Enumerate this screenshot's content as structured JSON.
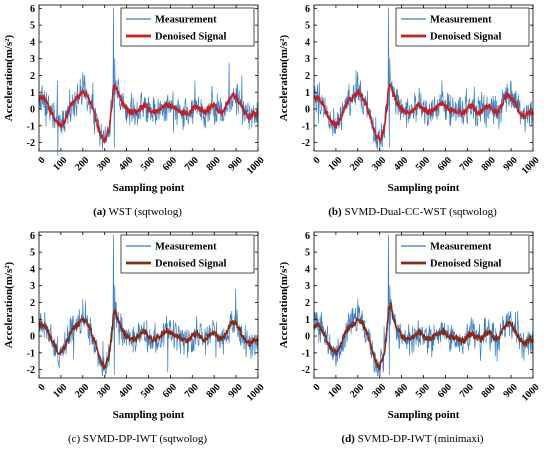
{
  "chart_data": [
    {
      "type": "line",
      "caption_letter": "(a)",
      "caption_text": "WST (sqtwolog)",
      "xlabel": "Sampling point",
      "ylabel": "Acceleration(m/s²)",
      "xlim": [
        0,
        1000
      ],
      "ylim": [
        -2.5,
        6.2
      ],
      "xticks": [
        "0",
        "100",
        "200",
        "300",
        "400",
        "500",
        "600",
        "700",
        "800",
        "900",
        "1000"
      ],
      "yticks": [
        "-2",
        "-1",
        "0",
        "1",
        "2",
        "3",
        "4",
        "5",
        "6"
      ],
      "legend_position": "top-right",
      "series": [
        {
          "name": "Measurement",
          "color": "#3a7fc6"
        },
        {
          "name": "Denoised Signal",
          "color": "#c81e1e"
        }
      ],
      "envelope": {
        "x": [
          0,
          20,
          40,
          60,
          80,
          100,
          120,
          140,
          160,
          180,
          200,
          220,
          240,
          260,
          280,
          300,
          320,
          335,
          340,
          350,
          360,
          380,
          400,
          420,
          440,
          460,
          480,
          500,
          520,
          540,
          560,
          580,
          600,
          620,
          640,
          660,
          680,
          700,
          720,
          740,
          760,
          780,
          800,
          820,
          840,
          860,
          880,
          900,
          920,
          940,
          960,
          980,
          1000
        ],
        "y": [
          0.6,
          0.7,
          0.3,
          -0.3,
          -0.8,
          -1.0,
          -0.6,
          0.1,
          0.5,
          0.7,
          1.0,
          0.8,
          0.2,
          -0.6,
          -1.5,
          -1.9,
          -1.2,
          0.4,
          1.3,
          1.4,
          1.0,
          0.4,
          0.0,
          -0.2,
          -0.2,
          0.0,
          0.3,
          0.0,
          -0.2,
          -0.1,
          0.1,
          0.3,
          0.2,
          0.0,
          -0.1,
          -0.2,
          -0.3,
          0.0,
          0.2,
          -0.1,
          -0.2,
          0.1,
          0.2,
          -0.1,
          -0.2,
          0.3,
          0.8,
          0.7,
          0.3,
          -0.2,
          -0.5,
          -0.3,
          -0.2
        ]
      }
    },
    {
      "type": "line",
      "caption_letter": "(b)",
      "caption_text": "SVMD-Dual-CC-WST (sqtwolog)",
      "xlabel": "Sampling point",
      "ylabel": "Acceleration(m/s²)",
      "xlim": [
        0,
        1000
      ],
      "ylim": [
        -2.5,
        6.2
      ],
      "xticks": [
        "0",
        "100",
        "200",
        "300",
        "400",
        "500",
        "600",
        "700",
        "800",
        "900",
        "1000"
      ],
      "yticks": [
        "-2",
        "-1",
        "0",
        "1",
        "2",
        "3",
        "4",
        "5",
        "6"
      ],
      "legend_position": "top-right",
      "series": [
        {
          "name": "Measurement",
          "color": "#3a7fc6"
        },
        {
          "name": "Denoised Signal",
          "color": "#c81e1e"
        }
      ],
      "envelope": {
        "x": [
          0,
          20,
          40,
          60,
          80,
          100,
          120,
          140,
          160,
          180,
          200,
          220,
          240,
          260,
          280,
          300,
          320,
          335,
          340,
          350,
          360,
          380,
          400,
          420,
          440,
          460,
          480,
          500,
          520,
          540,
          560,
          580,
          600,
          620,
          640,
          660,
          680,
          700,
          720,
          740,
          760,
          780,
          800,
          820,
          840,
          860,
          880,
          900,
          920,
          940,
          960,
          980,
          1000
        ],
        "y": [
          0.6,
          0.7,
          0.3,
          -0.3,
          -0.8,
          -1.0,
          -0.6,
          0.1,
          0.5,
          0.7,
          1.0,
          0.8,
          0.2,
          -0.6,
          -1.5,
          -1.9,
          -1.2,
          0.4,
          1.3,
          1.4,
          1.0,
          0.4,
          0.0,
          -0.2,
          -0.2,
          0.0,
          0.3,
          0.0,
          -0.2,
          -0.1,
          0.1,
          0.3,
          0.2,
          0.0,
          -0.1,
          -0.2,
          -0.3,
          0.0,
          0.2,
          -0.1,
          -0.2,
          0.1,
          0.2,
          -0.1,
          -0.2,
          0.3,
          0.8,
          0.7,
          0.3,
          -0.2,
          -0.5,
          -0.3,
          -0.2
        ]
      }
    },
    {
      "type": "line",
      "caption_letter": "(c)",
      "caption_text": "SVMD-DP-IWT (sqtwolog)",
      "xlabel": "Sampling point",
      "ylabel": "Acceleration(m/s²)",
      "xlim": [
        0,
        1000
      ],
      "ylim": [
        -2.5,
        6.2
      ],
      "xticks": [
        "0",
        "100",
        "200",
        "300",
        "400",
        "500",
        "600",
        "700",
        "800",
        "900",
        "1000"
      ],
      "yticks": [
        "-2",
        "-1",
        "0",
        "1",
        "2",
        "3",
        "4",
        "5",
        "6"
      ],
      "legend_position": "top-right",
      "series": [
        {
          "name": "Measurement",
          "color": "#3a7fc6"
        },
        {
          "name": "Denoised Signal",
          "color": "#8b2a12"
        }
      ],
      "envelope": {
        "x": [
          0,
          20,
          40,
          60,
          80,
          100,
          120,
          140,
          160,
          180,
          200,
          220,
          240,
          260,
          280,
          300,
          320,
          335,
          340,
          350,
          360,
          380,
          400,
          420,
          440,
          460,
          480,
          500,
          520,
          540,
          560,
          580,
          600,
          620,
          640,
          660,
          680,
          700,
          720,
          740,
          760,
          780,
          800,
          820,
          840,
          860,
          880,
          900,
          920,
          940,
          960,
          980,
          1000
        ],
        "y": [
          0.6,
          0.7,
          0.3,
          -0.3,
          -0.8,
          -1.0,
          -0.6,
          0.1,
          0.5,
          0.7,
          1.0,
          0.8,
          0.2,
          -0.6,
          -1.5,
          -1.9,
          -1.2,
          0.4,
          1.3,
          1.4,
          1.0,
          0.4,
          0.0,
          -0.2,
          -0.2,
          0.0,
          0.3,
          0.0,
          -0.2,
          -0.1,
          0.1,
          0.3,
          0.2,
          0.0,
          -0.1,
          -0.2,
          -0.3,
          0.0,
          0.2,
          -0.1,
          -0.2,
          0.1,
          0.2,
          -0.1,
          -0.2,
          0.3,
          0.8,
          0.7,
          0.3,
          -0.2,
          -0.5,
          -0.3,
          -0.2
        ]
      }
    },
    {
      "type": "line",
      "caption_letter": "(d)",
      "caption_text": "SVMD-DP-IWT (minimaxi)",
      "xlabel": "Sampling point",
      "ylabel": "Acceleration(m/s²)",
      "xlim": [
        0,
        1000
      ],
      "ylim": [
        -2.5,
        6.2
      ],
      "xticks": [
        "0",
        "100",
        "200",
        "300",
        "400",
        "500",
        "600",
        "700",
        "800",
        "900",
        "1000"
      ],
      "yticks": [
        "-2",
        "-1",
        "0",
        "1",
        "2",
        "3",
        "4",
        "5",
        "6"
      ],
      "legend_position": "top-right",
      "series": [
        {
          "name": "Measurement",
          "color": "#3a7fc6"
        },
        {
          "name": "Denoised Signal",
          "color": "#8b2a12"
        }
      ],
      "envelope": {
        "x": [
          0,
          20,
          40,
          60,
          80,
          100,
          120,
          140,
          160,
          180,
          200,
          220,
          240,
          260,
          280,
          300,
          320,
          335,
          340,
          350,
          360,
          380,
          400,
          420,
          440,
          460,
          480,
          500,
          520,
          540,
          560,
          580,
          600,
          620,
          640,
          660,
          680,
          700,
          720,
          740,
          760,
          780,
          800,
          820,
          840,
          860,
          880,
          900,
          920,
          940,
          960,
          980,
          1000
        ],
        "y": [
          0.6,
          0.7,
          0.3,
          -0.3,
          -0.8,
          -1.0,
          -0.6,
          0.1,
          0.5,
          0.7,
          1.0,
          0.8,
          0.2,
          -0.6,
          -1.5,
          -1.9,
          -1.2,
          0.6,
          1.6,
          1.9,
          1.2,
          0.4,
          0.0,
          -0.2,
          -0.2,
          0.0,
          0.3,
          0.0,
          -0.2,
          -0.1,
          0.1,
          0.3,
          0.2,
          0.0,
          -0.1,
          -0.2,
          -0.3,
          0.0,
          0.2,
          -0.1,
          -0.2,
          0.1,
          0.2,
          -0.1,
          -0.2,
          0.3,
          0.8,
          0.7,
          0.3,
          -0.2,
          -0.5,
          -0.3,
          -0.2
        ]
      }
    }
  ]
}
